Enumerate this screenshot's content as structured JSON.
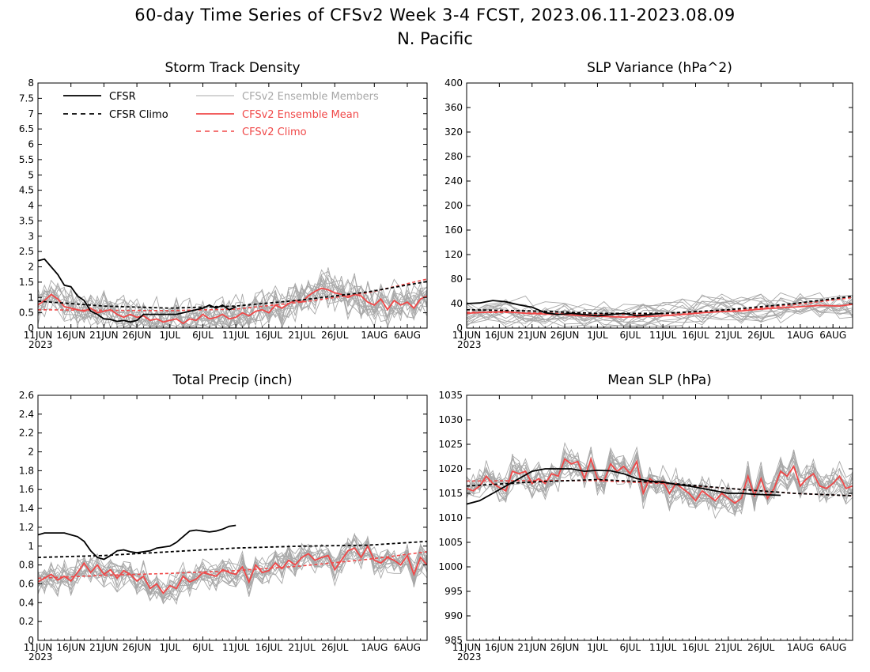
{
  "figure": {
    "title": "60-day Time Series of CFSv2 Week 3-4 FCST, 2023.06.11-2023.08.09",
    "subtitle": "N. Pacific"
  },
  "legend": {
    "cfsr": "CFSR",
    "cfsr_climo": "CFSR Climo",
    "members": "CFSv2 Ensemble Members",
    "ens_mean": "CFSv2 Ensemble Mean",
    "cfsv2_climo": "CFSv2 Climo"
  },
  "colors": {
    "cfsr": "#000000",
    "cfsr_climo": "#000000",
    "members": "#a8a8a8",
    "ens_mean": "#f04848",
    "cfsv2_climo": "#f04848"
  },
  "x_axis": {
    "tick_labels": [
      "11JUN",
      "16JUN",
      "21JUN",
      "26JUN",
      "1JUL",
      "6JUL",
      "11JUL",
      "16JUL",
      "21JUL",
      "26JUL",
      "1AUG",
      "6AUG"
    ],
    "tick_days": [
      0,
      5,
      10,
      15,
      20,
      25,
      30,
      35,
      40,
      45,
      51,
      56
    ],
    "year_label": "2023",
    "range_days": [
      0,
      59
    ]
  },
  "chart_data": [
    {
      "type": "line",
      "title": "Storm Track Density",
      "ylim": [
        0,
        8
      ],
      "yticks": [
        "0",
        "0.5",
        "1",
        "1.5",
        "2",
        "2.5",
        "3",
        "3.5",
        "4",
        "4.5",
        "5",
        "5.5",
        "6",
        "6.5",
        "7",
        "7.5",
        "8"
      ],
      "series": [
        {
          "name": "CFSR",
          "style": "solid-black",
          "x": [
            0,
            1,
            2,
            3,
            4,
            5,
            6,
            7,
            8,
            9,
            10,
            11,
            12,
            13,
            14,
            15,
            16,
            17,
            18,
            19,
            20,
            21,
            22,
            23,
            24,
            25,
            26,
            27,
            28,
            29,
            30
          ],
          "values": [
            2.2,
            2.25,
            2.0,
            1.75,
            1.4,
            1.35,
            1.05,
            0.9,
            0.55,
            0.45,
            0.3,
            0.28,
            0.22,
            0.25,
            0.2,
            0.25,
            0.45,
            0.45,
            0.45,
            0.45,
            0.45,
            0.45,
            0.5,
            0.55,
            0.6,
            0.65,
            0.75,
            0.65,
            0.75,
            0.6,
            0.7
          ]
        },
        {
          "name": "CFSR Climo",
          "style": "dashed-black",
          "x": [
            0,
            10,
            20,
            30,
            40,
            50,
            59
          ],
          "values": [
            0.88,
            0.72,
            0.65,
            0.72,
            0.92,
            1.18,
            1.52
          ]
        },
        {
          "name": "CFSv2 Climo",
          "style": "dashed-red",
          "x": [
            0,
            10,
            20,
            30,
            40,
            50,
            59
          ],
          "values": [
            0.6,
            0.58,
            0.57,
            0.62,
            0.85,
            1.15,
            1.6
          ]
        },
        {
          "name": "CFSv2 Ensemble Mean",
          "style": "solid-red",
          "x": [
            0,
            1,
            2,
            3,
            4,
            5,
            6,
            7,
            8,
            9,
            10,
            11,
            12,
            13,
            14,
            15,
            16,
            17,
            18,
            19,
            20,
            21,
            22,
            23,
            24,
            25,
            26,
            27,
            28,
            29,
            30,
            31,
            32,
            33,
            34,
            35,
            36,
            37,
            38,
            39,
            40,
            41,
            42,
            43,
            44,
            45,
            46,
            47,
            48,
            49,
            50,
            51,
            52,
            53,
            54,
            55,
            56,
            57,
            58,
            59
          ],
          "values": [
            0.75,
            0.9,
            1.1,
            0.95,
            0.7,
            0.65,
            0.6,
            0.55,
            0.65,
            0.5,
            0.55,
            0.6,
            0.45,
            0.35,
            0.45,
            0.35,
            0.4,
            0.25,
            0.3,
            0.2,
            0.25,
            0.3,
            0.15,
            0.3,
            0.25,
            0.45,
            0.3,
            0.35,
            0.45,
            0.3,
            0.35,
            0.5,
            0.4,
            0.55,
            0.6,
            0.5,
            0.75,
            0.65,
            0.8,
            0.9,
            0.85,
            1.05,
            1.2,
            1.3,
            1.25,
            1.15,
            1.1,
            1.0,
            1.1,
            1.05,
            0.85,
            0.75,
            0.95,
            0.6,
            0.9,
            0.75,
            0.85,
            0.65,
            0.95,
            1.05
          ]
        }
      ]
    },
    {
      "type": "line",
      "title": "SLP Variance (hPa^2)",
      "ylim": [
        0,
        400
      ],
      "yticks": [
        "0",
        "40",
        "80",
        "120",
        "160",
        "200",
        "240",
        "280",
        "320",
        "360",
        "400"
      ],
      "series": [
        {
          "name": "CFSR",
          "style": "solid-black",
          "x": [
            0,
            2,
            4,
            6,
            8,
            10,
            12,
            14,
            16,
            18,
            20,
            22,
            24,
            26,
            28,
            30
          ],
          "values": [
            40,
            41,
            45,
            43,
            38,
            34,
            25,
            22,
            24,
            22,
            20,
            22,
            24,
            20,
            22,
            24
          ]
        },
        {
          "name": "CFSR Climo",
          "style": "dashed-black",
          "x": [
            0,
            10,
            20,
            30,
            40,
            50,
            59
          ],
          "values": [
            30,
            28,
            24,
            24,
            30,
            40,
            52
          ]
        },
        {
          "name": "CFSv2 Climo",
          "style": "dashed-red",
          "x": [
            0,
            10,
            20,
            30,
            40,
            50,
            59
          ],
          "values": [
            26,
            25,
            22,
            23,
            28,
            38,
            50
          ]
        },
        {
          "name": "CFSv2 Ensemble Mean",
          "style": "solid-red",
          "x": [
            0,
            3,
            6,
            9,
            12,
            15,
            18,
            21,
            24,
            27,
            30,
            33,
            36,
            39,
            42,
            45,
            48,
            51,
            54,
            57,
            59
          ],
          "values": [
            24,
            26,
            27,
            24,
            23,
            22,
            20,
            19,
            18,
            19,
            20,
            22,
            25,
            27,
            28,
            31,
            33,
            35,
            37,
            36,
            39
          ]
        }
      ]
    },
    {
      "type": "line",
      "title": "Total Precip (inch)",
      "ylim": [
        0,
        2.6
      ],
      "yticks": [
        "0",
        "0.2",
        "0.4",
        "0.6",
        "0.8",
        "1",
        "1.2",
        "1.4",
        "1.6",
        "1.8",
        "2",
        "2.2",
        "2.4",
        "2.6"
      ],
      "series": [
        {
          "name": "CFSR",
          "style": "solid-black",
          "x": [
            0,
            1,
            2,
            3,
            4,
            5,
            6,
            7,
            8,
            9,
            10,
            11,
            12,
            13,
            14,
            15,
            16,
            17,
            18,
            19,
            20,
            21,
            22,
            23,
            24,
            25,
            26,
            27,
            28,
            29,
            30
          ],
          "values": [
            1.12,
            1.14,
            1.14,
            1.14,
            1.14,
            1.12,
            1.1,
            1.05,
            0.95,
            0.88,
            0.86,
            0.9,
            0.95,
            0.96,
            0.94,
            0.93,
            0.94,
            0.95,
            0.98,
            0.99,
            1.0,
            1.04,
            1.1,
            1.16,
            1.17,
            1.16,
            1.15,
            1.16,
            1.18,
            1.21,
            1.22
          ]
        },
        {
          "name": "CFSR Climo",
          "style": "dashed-black",
          "x": [
            0,
            10,
            20,
            30,
            40,
            50,
            59
          ],
          "values": [
            0.88,
            0.9,
            0.94,
            0.98,
            1.0,
            1.01,
            1.05
          ]
        },
        {
          "name": "CFSv2 Climo",
          "style": "dashed-red",
          "x": [
            0,
            10,
            20,
            30,
            40,
            50,
            59
          ],
          "values": [
            0.66,
            0.69,
            0.71,
            0.74,
            0.79,
            0.86,
            0.94
          ]
        },
        {
          "name": "CFSv2 Ensemble Mean",
          "style": "solid-red",
          "x": [
            0,
            1,
            2,
            3,
            4,
            5,
            6,
            7,
            8,
            9,
            10,
            11,
            12,
            13,
            14,
            15,
            16,
            17,
            18,
            19,
            20,
            21,
            22,
            23,
            24,
            25,
            26,
            27,
            28,
            29,
            30,
            31,
            32,
            33,
            34,
            35,
            36,
            37,
            38,
            39,
            40,
            41,
            42,
            43,
            44,
            45,
            46,
            47,
            48,
            49,
            50,
            51,
            52,
            53,
            54,
            55,
            56,
            57,
            58,
            59
          ],
          "values": [
            0.62,
            0.66,
            0.7,
            0.64,
            0.68,
            0.63,
            0.72,
            0.82,
            0.72,
            0.8,
            0.7,
            0.75,
            0.66,
            0.74,
            0.7,
            0.63,
            0.68,
            0.55,
            0.6,
            0.5,
            0.58,
            0.55,
            0.68,
            0.62,
            0.65,
            0.72,
            0.7,
            0.68,
            0.75,
            0.72,
            0.7,
            0.78,
            0.62,
            0.8,
            0.72,
            0.74,
            0.82,
            0.76,
            0.85,
            0.8,
            0.88,
            0.92,
            0.85,
            0.88,
            0.9,
            0.75,
            0.85,
            0.95,
            0.98,
            0.88,
            1.0,
            0.85,
            0.82,
            0.88,
            0.85,
            0.8,
            0.9,
            0.7,
            0.88,
            0.8
          ]
        }
      ]
    },
    {
      "type": "line",
      "title": "Mean SLP (hPa)",
      "ylim": [
        985,
        1035
      ],
      "yticks": [
        "985",
        "990",
        "995",
        "1000",
        "1005",
        "1010",
        "1015",
        "1020",
        "1025",
        "1030",
        "1035"
      ],
      "series": [
        {
          "name": "CFSR",
          "style": "solid-black",
          "x": [
            0,
            2,
            4,
            6,
            8,
            10,
            12,
            14,
            16,
            18,
            20,
            22,
            24,
            26,
            28,
            30,
            32,
            34,
            36,
            38,
            40,
            42,
            44,
            46,
            48
          ],
          "values": [
            1012.8,
            1013.5,
            1015.0,
            1016.5,
            1018.0,
            1019.5,
            1020.0,
            1020.0,
            1020.0,
            1019.5,
            1019.7,
            1019.6,
            1019.0,
            1018.0,
            1017.5,
            1017.3,
            1016.8,
            1016.5,
            1016.0,
            1015.5,
            1015.0,
            1015.0,
            1014.8,
            1014.7,
            1014.6
          ]
        },
        {
          "name": "CFSR Climo",
          "style": "dashed-black",
          "x": [
            0,
            10,
            20,
            30,
            40,
            50,
            59
          ],
          "values": [
            1016.5,
            1017.3,
            1017.8,
            1017.2,
            1016.0,
            1015.0,
            1014.5
          ]
        },
        {
          "name": "CFSv2 Climo",
          "style": "dashed-red",
          "x": [
            0,
            10,
            20,
            30,
            40,
            50,
            59
          ],
          "values": [
            1017.5,
            1017.6,
            1017.6,
            1017.0,
            1016.0,
            1015.0,
            1014.5
          ]
        },
        {
          "name": "CFSv2 Ensemble Mean",
          "style": "solid-red",
          "x": [
            0,
            1,
            2,
            3,
            4,
            5,
            6,
            7,
            8,
            9,
            10,
            11,
            12,
            13,
            14,
            15,
            16,
            17,
            18,
            19,
            20,
            21,
            22,
            23,
            24,
            25,
            26,
            27,
            28,
            29,
            30,
            31,
            32,
            33,
            34,
            35,
            36,
            37,
            38,
            39,
            40,
            41,
            42,
            43,
            44,
            45,
            46,
            47,
            48,
            49,
            50,
            51,
            52,
            53,
            54,
            55,
            56,
            57,
            58,
            59
          ],
          "values": [
            1016,
            1015.5,
            1016.5,
            1018.5,
            1017.0,
            1016.2,
            1015.5,
            1019.5,
            1019.0,
            1019.5,
            1017.0,
            1018.0,
            1017.0,
            1019.0,
            1018.5,
            1022.0,
            1021.0,
            1021.5,
            1018.0,
            1022.0,
            1018.0,
            1017.5,
            1021.0,
            1019.5,
            1020.5,
            1019.0,
            1021.5,
            1015.0,
            1018.0,
            1017.0,
            1017.5,
            1015.0,
            1017.0,
            1016.0,
            1015.0,
            1013.5,
            1015.5,
            1014.5,
            1013.5,
            1015.0,
            1014.0,
            1013.0,
            1014.0,
            1018.5,
            1014.5,
            1018.0,
            1014.0,
            1016.0,
            1019.5,
            1018.5,
            1020.5,
            1016.5,
            1018.0,
            1019.0,
            1016.5,
            1016.0,
            1017.0,
            1018.5,
            1016.0,
            1016.5
          ]
        }
      ]
    }
  ]
}
